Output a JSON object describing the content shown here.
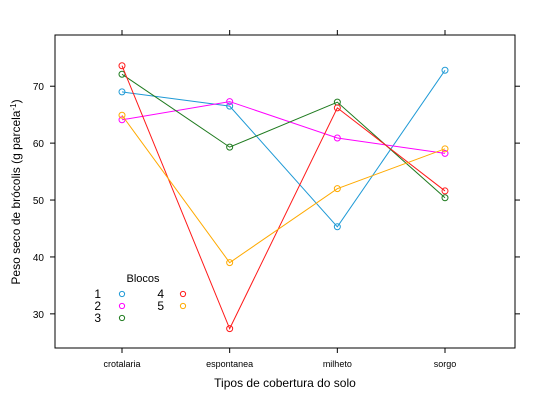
{
  "chart_data": {
    "type": "line",
    "title": "",
    "xlabel": "Tipos de cobertura do solo",
    "ylabel_main": "Peso seco de brócolis (g parcela",
    "ylabel_sup": "-1",
    "ylabel_close": ")",
    "categories": [
      "crotalaria",
      "espontanea",
      "milheto",
      "sorgo"
    ],
    "ylim": [
      24,
      79
    ],
    "yticks": [
      30,
      40,
      50,
      60,
      70
    ],
    "grid": false,
    "legend": {
      "title": "Blocos",
      "placement": "bottom-left"
    },
    "series": [
      {
        "name": "1",
        "color": "#1f9ad6",
        "values": [
          69.0,
          66.5,
          45.3,
          72.8
        ]
      },
      {
        "name": "2",
        "color": "#ff00ff",
        "values": [
          64.1,
          67.3,
          60.9,
          58.2
        ]
      },
      {
        "name": "3",
        "color": "#1e7a1e",
        "values": [
          72.1,
          59.3,
          67.2,
          50.4
        ]
      },
      {
        "name": "4",
        "color": "#ff1a1a",
        "values": [
          73.6,
          27.4,
          66.2,
          51.6
        ]
      },
      {
        "name": "5",
        "color": "#ffaa00",
        "values": [
          64.9,
          39.0,
          52.0,
          59.0
        ]
      }
    ]
  }
}
